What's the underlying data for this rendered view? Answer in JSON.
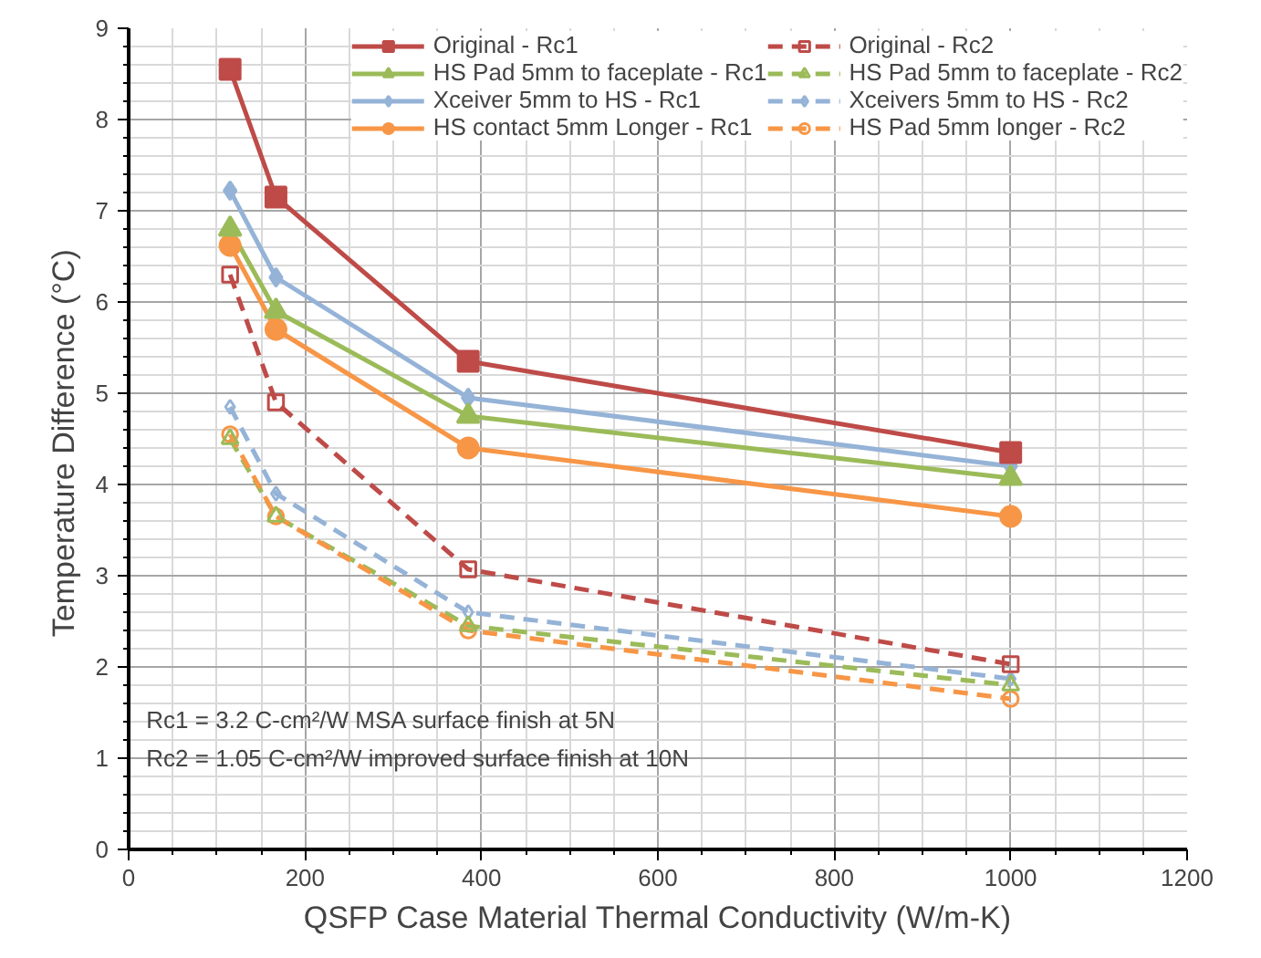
{
  "chart_data": {
    "type": "line",
    "xlabel": "QSFP Case Material Thermal Conductivity (W/m-K)",
    "ylabel": "Temperature  Difference (°C)",
    "x": [
      115,
      167,
      385,
      1000
    ],
    "xlim": [
      0,
      1200
    ],
    "xticks": [
      0,
      200,
      400,
      600,
      800,
      1000,
      1200
    ],
    "ylim": [
      0,
      9
    ],
    "yticks": [
      0,
      1,
      2,
      3,
      4,
      5,
      6,
      7,
      8,
      9
    ],
    "grid": true,
    "legend": "top right",
    "series": [
      {
        "name": "Original - Rc1",
        "color": "#be4b48",
        "values": [
          8.55,
          7.15,
          5.35,
          4.35
        ],
        "marker": "square",
        "line_style": "solid"
      },
      {
        "name": "HS Pad 5mm to faceplate - Rc1",
        "color": "#9bbb59",
        "values": [
          6.8,
          5.9,
          4.75,
          4.07
        ],
        "marker": "triangle",
        "line_style": "solid"
      },
      {
        "name": "Xceiver 5mm to HS - Rc1",
        "color": "#95b3d7",
        "values": [
          7.22,
          6.27,
          4.95,
          4.2
        ],
        "marker": "diamond",
        "line_style": "solid"
      },
      {
        "name": "HS contact 5mm Longer - Rc1",
        "color": "#f79646",
        "values": [
          6.62,
          5.7,
          4.4,
          3.65
        ],
        "marker": "circle",
        "line_style": "solid"
      },
      {
        "name": "Original - Rc2",
        "color": "#be4b48",
        "values": [
          6.3,
          4.9,
          3.07,
          2.03
        ],
        "marker": "square",
        "line_style": "dashed"
      },
      {
        "name": "HS Pad 5mm to faceplate - Rc2",
        "color": "#9bbb59",
        "values": [
          4.5,
          3.65,
          2.45,
          1.8
        ],
        "marker": "triangle",
        "line_style": "dashed"
      },
      {
        "name": "Xceivers 5mm to HS - Rc2",
        "color": "#95b3d7",
        "values": [
          4.85,
          3.9,
          2.6,
          1.87
        ],
        "marker": "diamond",
        "line_style": "dashed"
      },
      {
        "name": "HS Pad 5mm longer - Rc2",
        "color": "#f79646",
        "values": [
          4.55,
          3.65,
          2.4,
          1.65
        ],
        "marker": "circle",
        "line_style": "dashed"
      }
    ],
    "annotations": [
      "Rc1 = 3.2 C-cm²/W MSA surface finish at 5N",
      "Rc2 = 1.05 C-cm²/W improved surface finish at 10N"
    ]
  }
}
